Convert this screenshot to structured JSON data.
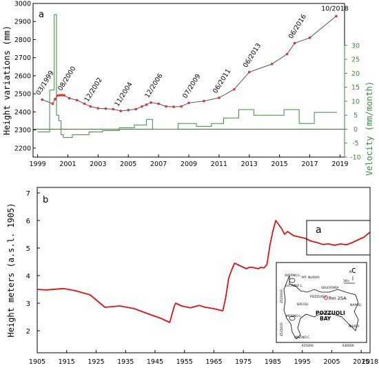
{
  "chart_data": [
    {
      "panel": "a",
      "type": "line",
      "ylabel": "Height variations (mm)",
      "ylabel2": "Velocity (mm/month)",
      "ylim": [
        2150,
        3000
      ],
      "yticks": [
        2200,
        2300,
        2400,
        2500,
        2600,
        2700,
        2800,
        2900,
        3000
      ],
      "ylim2": [
        -10,
        45
      ],
      "yticks2": [
        -10,
        -5,
        0,
        5,
        10,
        15,
        20,
        25,
        30
      ],
      "xlim": [
        1998.7,
        2019.3
      ],
      "xticks": [
        1999,
        2001,
        2003,
        2005,
        2007,
        2009,
        2011,
        2013,
        2015,
        2017,
        2019
      ],
      "series": [
        {
          "color": "#555555",
          "marker_color": "#e03030",
          "x": [
            1999.3,
            2000.0,
            2000.15,
            2000.3,
            2000.45,
            2000.6,
            2000.75,
            2001.1,
            2001.6,
            2002.1,
            2002.5,
            2003.0,
            2003.5,
            2004.0,
            2004.5,
            2005.0,
            2005.5,
            2005.9,
            2006.2,
            2006.5,
            2007.0,
            2007.5,
            2008.0,
            2008.5,
            2009.0,
            2010.0,
            2011.0,
            2012.0,
            2013.0,
            2014.5,
            2015.5,
            2016.0,
            2017.0,
            2018.75
          ],
          "y": [
            2468,
            2445,
            2470,
            2490,
            2492,
            2493,
            2492,
            2475,
            2465,
            2445,
            2430,
            2420,
            2418,
            2415,
            2405,
            2410,
            2415,
            2430,
            2440,
            2452,
            2445,
            2430,
            2428,
            2430,
            2450,
            2460,
            2478,
            2525,
            2620,
            2665,
            2720,
            2780,
            2810,
            2930
          ]
        },
        {
          "axis": "right",
          "color": "#3a8a3a",
          "x": [
            1999.0,
            1999.8,
            1999.8,
            2000.1,
            2000.1,
            2000.25,
            2000.25,
            2000.4,
            2000.4,
            2000.55,
            2000.55,
            2000.7,
            2000.7,
            2000.85,
            2000.85,
            2001.3,
            2001.3,
            2002.4,
            2002.4,
            2003.3,
            2003.3,
            2004.4,
            2004.4,
            2005.4,
            2005.4,
            2006.2,
            2006.2,
            2006.6,
            2006.6,
            2008.3,
            2008.3,
            2009.5,
            2009.5,
            2010.5,
            2010.5,
            2011.3,
            2011.3,
            2012.3,
            2012.3,
            2013.3,
            2013.3,
            2015.3,
            2015.3,
            2016.3,
            2016.3,
            2017.3,
            2017.3,
            2018.8
          ],
          "y": [
            -1,
            -1,
            14,
            14,
            41,
            41,
            5,
            5,
            3,
            3,
            -2,
            -2,
            -3,
            -3,
            -3,
            -3,
            -2,
            -2,
            -1,
            -1,
            -0.5,
            -0.5,
            0.5,
            0.5,
            1.5,
            1.5,
            3.5,
            3.5,
            0,
            0,
            2,
            2,
            1,
            1,
            2,
            2,
            4,
            4,
            7,
            7,
            5,
            5,
            7,
            7,
            2,
            2,
            6,
            6
          ]
        }
      ],
      "hline": {
        "axis": "right",
        "y": 0
      },
      "annotations": [
        {
          "text": "03/1999",
          "x": 1999.3,
          "y": 2468
        },
        {
          "text": "08/2000",
          "x": 2000.75,
          "y": 2492
        },
        {
          "text": "12/2002",
          "x": 2002.5,
          "y": 2430
        },
        {
          "text": "11/2004",
          "x": 2004.5,
          "y": 2405
        },
        {
          "text": "12/2006",
          "x": 2006.5,
          "y": 2452
        },
        {
          "text": "07/2009",
          "x": 2009.0,
          "y": 2450
        },
        {
          "text": "06/2011",
          "x": 2011.0,
          "y": 2478
        },
        {
          "text": "06/2013",
          "x": 2013.0,
          "y": 2620
        },
        {
          "text": "06/2016",
          "x": 2016.0,
          "y": 2780
        },
        {
          "text": "10/2018",
          "x": 2018.75,
          "y": 2930
        }
      ]
    },
    {
      "panel": "b",
      "type": "line",
      "ylabel": "Height meters (a.s.l. 1905)",
      "ylim": [
        1.2,
        7.2
      ],
      "yticks": [
        2,
        3,
        4,
        5,
        6,
        7
      ],
      "xlim": [
        1905,
        2018
      ],
      "xticks": [
        1905,
        1915,
        1925,
        1935,
        1945,
        1955,
        1965,
        1975,
        1985,
        1995,
        2005,
        2015,
        2018
      ],
      "series": [
        {
          "color": "#e01010",
          "x": [
            1905,
            1908,
            1914,
            1918,
            1923,
            1928,
            1933,
            1938,
            1943,
            1947,
            1950,
            1951.5,
            1952,
            1954,
            1957,
            1960,
            1962,
            1965,
            1968,
            1969,
            1970,
            1971,
            1972,
            1974,
            1976,
            1977,
            1978,
            1980,
            1981,
            1982,
            1983,
            1984,
            1985,
            1986,
            1987,
            1988,
            1989,
            1990,
            1992,
            1994,
            1996,
            1998,
            2000,
            2002,
            2004,
            2006,
            2008,
            2010,
            2012,
            2014,
            2016,
            2018
          ],
          "y": [
            3.5,
            3.48,
            3.53,
            3.45,
            3.3,
            2.85,
            2.9,
            2.8,
            2.6,
            2.45,
            2.3,
            2.88,
            3.0,
            2.9,
            2.83,
            2.92,
            2.85,
            2.8,
            2.72,
            3.2,
            3.9,
            4.2,
            4.45,
            4.35,
            4.25,
            4.3,
            4.3,
            4.25,
            4.3,
            4.28,
            4.4,
            5.1,
            5.6,
            6.0,
            5.85,
            5.7,
            5.5,
            5.6,
            5.45,
            5.4,
            5.35,
            5.25,
            5.2,
            5.13,
            5.15,
            5.1,
            5.15,
            5.12,
            5.2,
            5.3,
            5.4,
            5.58
          ]
        }
      ],
      "inset_box_label": "a",
      "inset_map": {
        "label": "c",
        "places": [
          "AVERNO L.",
          "MT. NUOVO",
          "LUCRINO L.",
          "SOLFATARA",
          "POZZUOLI",
          "Rm 25A",
          "BACOLI",
          "NAPOLI",
          "POZZUOLI",
          "BAY",
          "MISENO L.",
          "NISIDA",
          "MISENO C.",
          "N"
        ],
        "ticks": [
          "4520000",
          "4515000",
          "425000",
          "430000"
        ],
        "scale": "1Km"
      }
    }
  ]
}
